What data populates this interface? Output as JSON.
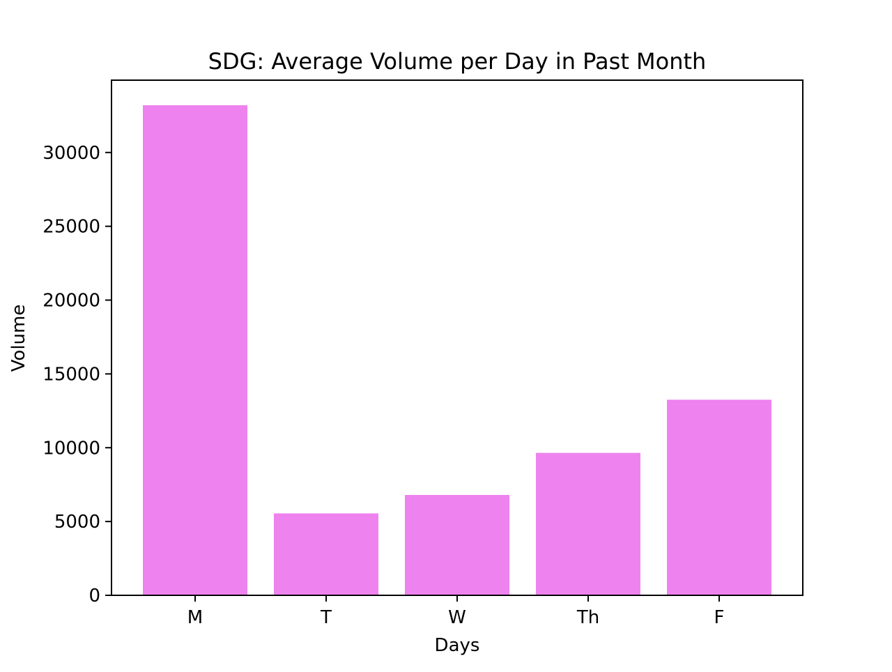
{
  "chart_data": {
    "type": "bar",
    "title": "SDG: Average Volume per Day in Past Month",
    "xlabel": "Days",
    "ylabel": "Volume",
    "categories": [
      "M",
      "T",
      "W",
      "Th",
      "F"
    ],
    "values": [
      33200,
      5550,
      6800,
      9650,
      13250
    ],
    "ylim": [
      0,
      34900
    ],
    "yticks": [
      0,
      5000,
      10000,
      15000,
      20000,
      25000,
      30000
    ],
    "ytick_labels": [
      "0",
      "5000",
      "10000",
      "15000",
      "20000",
      "25000",
      "30000"
    ],
    "grid": false,
    "legend": "none",
    "bar_color": "#ee82ee"
  }
}
